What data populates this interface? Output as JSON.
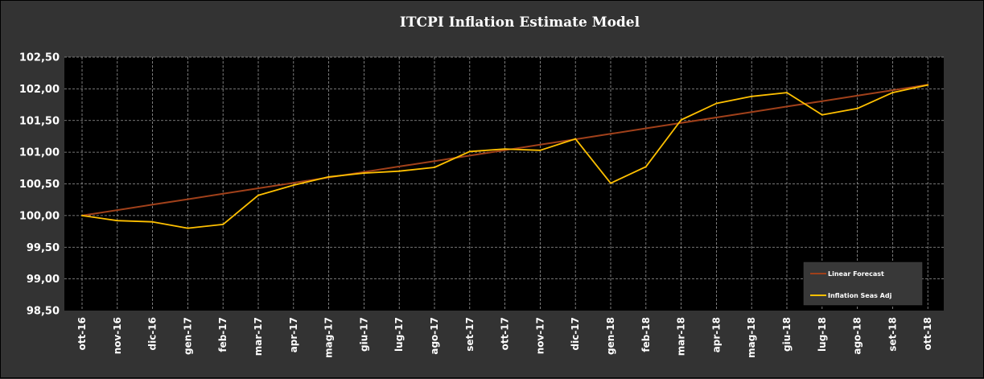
{
  "chart_data": {
    "type": "line",
    "title": "ITCPI Inflation  Estimate Model",
    "categories": [
      "ott-16",
      "nov-16",
      "dic-16",
      "gen-17",
      "feb-17",
      "mar-17",
      "apr-17",
      "mag-17",
      "giu-17",
      "lug-17",
      "ago-17",
      "set-17",
      "ott-17",
      "nov-17",
      "dic-17",
      "gen-18",
      "feb-18",
      "mar-18",
      "apr-18",
      "mag-18",
      "giu-18",
      "lug-18",
      "ago-18",
      "set-18",
      "ott-18"
    ],
    "series": [
      {
        "name": "Linear Forecast",
        "color": "#a0401a",
        "values": [
          100.0,
          100.086,
          100.172,
          100.258,
          100.344,
          100.43,
          100.516,
          100.602,
          100.688,
          100.774,
          100.86,
          100.946,
          101.032,
          101.118,
          101.204,
          101.29,
          101.376,
          101.462,
          101.548,
          101.634,
          101.72,
          101.806,
          101.892,
          101.978,
          102.064
        ]
      },
      {
        "name": "Inflation Seas Adj",
        "color": "#ffc000",
        "values": [
          100.0,
          99.92,
          99.9,
          99.8,
          99.86,
          100.32,
          100.48,
          100.61,
          100.67,
          100.7,
          100.76,
          101.01,
          101.05,
          101.03,
          101.21,
          100.51,
          100.77,
          101.51,
          101.77,
          101.88,
          101.94,
          101.59,
          101.69,
          101.94,
          102.06
        ]
      }
    ],
    "yticks": [
      "98,50",
      "99,00",
      "99,50",
      "100,00",
      "100,50",
      "101,00",
      "101,50",
      "102,00",
      "102,50"
    ],
    "ylim": [
      98.5,
      102.5
    ],
    "xlabel": "",
    "ylabel": "",
    "grid": true,
    "legend_position": "bottom-right"
  }
}
